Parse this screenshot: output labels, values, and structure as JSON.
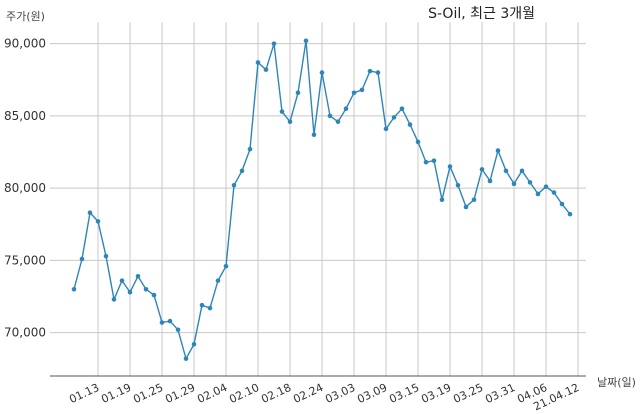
{
  "chart_data": {
    "type": "line",
    "title": "S-Oil, 최근 3개월",
    "ylabel": "주가(원)",
    "xlabel": "날짜(일)",
    "ylim": [
      67000,
      91500
    ],
    "grid": true,
    "yticks": [
      70000,
      75000,
      80000,
      85000,
      90000
    ],
    "ytick_labels": [
      "70,000",
      "75,000",
      "80,000",
      "85,000",
      "90,000"
    ],
    "xtick_labels": [
      "01.13",
      "01.19",
      "01.25",
      "01.29",
      "02.04",
      "02.10",
      "02.18",
      "02.24",
      "03.03",
      "03.09",
      "03.15",
      "03.19",
      "03.25",
      "03.31",
      "04.06",
      "21.04.12"
    ],
    "xtick_index": [
      3,
      7,
      11,
      15,
      19,
      23,
      27,
      31,
      35,
      39,
      43,
      47,
      51,
      55,
      59,
      63
    ],
    "series": [
      {
        "color": "#2e86b8",
        "values": [
          73000,
          75100,
          78300,
          77700,
          75300,
          72300,
          73600,
          72800,
          73900,
          73000,
          72600,
          70700,
          70800,
          70200,
          68200,
          69200,
          71900,
          71700,
          73600,
          74600,
          80200,
          81200,
          82700,
          88700,
          88200,
          90000,
          85300,
          84600,
          86600,
          90200,
          83700,
          88000,
          85000,
          84600,
          85500,
          86600,
          86800,
          88100,
          88000,
          84100,
          84900,
          85500,
          84400,
          83200,
          81800,
          81900,
          79200,
          81500,
          80200,
          78700,
          79200,
          81300,
          80500,
          82600,
          81200,
          80300,
          81200,
          80400,
          79600,
          80100,
          79700,
          78900,
          78200
        ]
      }
    ]
  }
}
